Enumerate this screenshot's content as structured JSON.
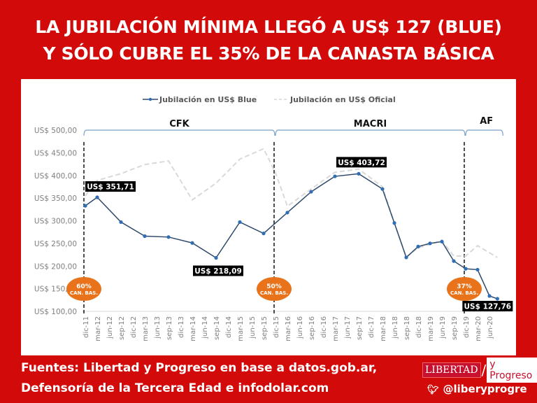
{
  "title": [
    "LA JUBILACIÓN MÍNIMA LLEGÓ A US$ 127 (BLUE)",
    "Y SÓLO CUBRE EL 35% DE LA CANASTA BÁSICA"
  ],
  "footer": {
    "sources": [
      "Fuentes: Libertad y Progreso en base a datos.gob.ar,",
      "Defensoría de la Tercera Edad e infodolar.com"
    ],
    "logo_left": "LIBERTAD",
    "logo_right": "y Progreso",
    "twitter_icon": "twitter-bird-icon",
    "twitter": "@liberyprogre"
  },
  "colors": {
    "background": "#d20a0a",
    "blue": "#2e4a6b",
    "blue_marker": "#2f6db5",
    "oficial": "#d9d9d9",
    "badge": "#e8731a"
  },
  "chart_data": {
    "type": "line",
    "title": "",
    "xlabel": "",
    "ylabel": "",
    "ylim": [
      100,
      500
    ],
    "yticks": [
      "US$ 100,00",
      "US$ 150,00",
      "US$ 200,00",
      "US$ 250,00",
      "US$ 300,00",
      "US$ 350,00",
      "US$ 400,00",
      "US$ 450,00",
      "US$ 500,00"
    ],
    "categories": [
      "dic-11",
      "mar-12",
      "jun-12",
      "sep-12",
      "dic-12",
      "mar-13",
      "jun-13",
      "sep-13",
      "dic-13",
      "mar-14",
      "jun-14",
      "sep-14",
      "dic-14",
      "mar-15",
      "jun-15",
      "sep-15",
      "dic-15",
      "mar-16",
      "jun-16",
      "sep-16",
      "dic-16",
      "mar-17",
      "jun-17",
      "sep-17",
      "dic-17",
      "mar-18",
      "jun-18",
      "sep-18",
      "dic-18",
      "mar-19",
      "jun-19",
      "sep-19",
      "dic-19",
      "mar-20",
      "jun-20"
    ],
    "legend": {
      "position": "top",
      "entries": [
        "Jubilación en US$ Blue",
        "Jubilación en US$ Oficial"
      ]
    },
    "grid": false,
    "series": [
      {
        "name": "Jubilación en US$ Blue",
        "style": "solid-markers",
        "points": [
          {
            "x": "dic-11",
            "y": 333
          },
          {
            "x": "mar-12",
            "y": 351.71
          },
          {
            "x": "sep-12",
            "y": 297
          },
          {
            "x": "mar-13",
            "y": 266
          },
          {
            "x": "sep-13",
            "y": 264
          },
          {
            "x": "mar-14",
            "y": 251
          },
          {
            "x": "sep-14",
            "y": 218.09
          },
          {
            "x": "mar-15",
            "y": 297
          },
          {
            "x": "sep-15",
            "y": 272
          },
          {
            "x": "mar-16",
            "y": 318
          },
          {
            "x": "sep-16",
            "y": 364
          },
          {
            "x": "mar-17",
            "y": 398
          },
          {
            "x": "sep-17",
            "y": 403.72
          },
          {
            "x": "mar-18",
            "y": 370
          },
          {
            "x": "jun-18",
            "y": 295
          },
          {
            "x": "sep-18",
            "y": 219
          },
          {
            "x": "dic-18",
            "y": 243
          },
          {
            "x": "mar-19",
            "y": 250
          },
          {
            "x": "jun-19",
            "y": 254
          },
          {
            "x": "sep-19",
            "y": 211
          },
          {
            "x": "dic-19",
            "y": 194
          },
          {
            "x": "mar-20",
            "y": 192
          },
          {
            "x": "jun-20",
            "y": 134
          },
          {
            "x": "ago-20",
            "y": 127.76
          }
        ]
      },
      {
        "name": "Jubilación en US$ Oficial",
        "style": "dashed",
        "points": [
          {
            "x": "dic-11",
            "y": 355
          },
          {
            "x": "mar-12",
            "y": 389
          },
          {
            "x": "sep-12",
            "y": 404
          },
          {
            "x": "mar-13",
            "y": 424
          },
          {
            "x": "sep-13",
            "y": 432
          },
          {
            "x": "mar-14",
            "y": 346
          },
          {
            "x": "sep-14",
            "y": 383
          },
          {
            "x": "mar-15",
            "y": 436
          },
          {
            "x": "sep-15",
            "y": 459
          },
          {
            "x": "dic-15",
            "y": 406
          },
          {
            "x": "mar-16",
            "y": 332
          },
          {
            "x": "sep-16",
            "y": 370
          },
          {
            "x": "mar-17",
            "y": 407
          },
          {
            "x": "sep-17",
            "y": 414
          },
          {
            "x": "mar-18",
            "y": 375
          },
          {
            "x": "jun-18",
            "y": 295
          },
          {
            "x": "sep-18",
            "y": 220
          },
          {
            "x": "dic-18",
            "y": 240
          },
          {
            "x": "mar-19",
            "y": 248
          },
          {
            "x": "jun-19",
            "y": 256
          },
          {
            "x": "sep-19",
            "y": 222
          },
          {
            "x": "dic-19",
            "y": 222
          },
          {
            "x": "mar-20",
            "y": 245
          },
          {
            "x": "ago-20",
            "y": 219
          }
        ]
      }
    ],
    "periods": [
      {
        "label": "CFK",
        "from": "dic-11",
        "to": "dic-15"
      },
      {
        "label": "MACRI",
        "from": "dic-15",
        "to": "dic-19"
      },
      {
        "label": "AF",
        "from": "dic-19",
        "to": "ago-20"
      }
    ],
    "period_markers": [
      {
        "x": "dic-11",
        "badge": "60%",
        "badge_sub": "CAN. BAS."
      },
      {
        "x": "dic-15",
        "badge": "50%",
        "badge_sub": "CAN. BAS."
      },
      {
        "x": "dic-19",
        "badge": "37%",
        "badge_sub": "CAN. BAS."
      }
    ],
    "annotations": [
      {
        "x": "mar-12",
        "y": 351.71,
        "text": "US$ 351,71"
      },
      {
        "x": "sep-14",
        "y": 218.09,
        "text": "US$ 218,09"
      },
      {
        "x": "sep-17",
        "y": 403.72,
        "text": "US$ 403,72"
      },
      {
        "x": "ago-20",
        "y": 127.76,
        "text": "US$ 127,76"
      }
    ]
  }
}
